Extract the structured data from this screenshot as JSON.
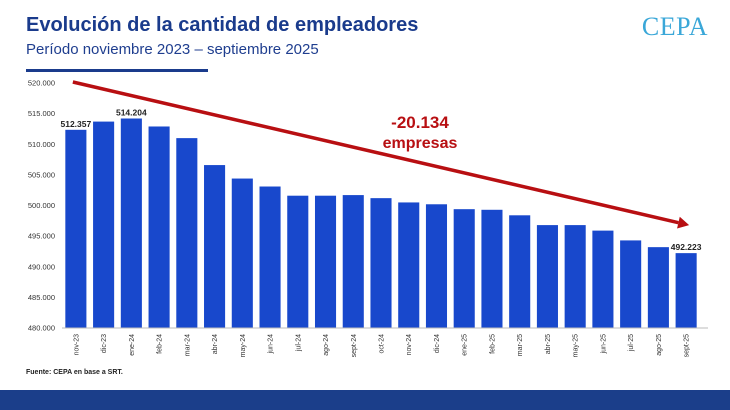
{
  "title": "Evolución de la cantidad de empleadores",
  "subtitle": "Período noviembre 2023 – septiembre 2025",
  "logo": "CEPA",
  "source": "Fuente: CEPA en base a SRT.",
  "colors": {
    "bar": "#1848cc",
    "arrow": "#b80f12",
    "title": "#1a3b8c",
    "footer": "#1b3e8a"
  },
  "chart_data": {
    "type": "bar",
    "title": "Evolución de la cantidad de empleadores",
    "xlabel": "",
    "ylabel": "",
    "categories": [
      "nov-23",
      "dic-23",
      "ene-24",
      "feb-24",
      "mar-24",
      "abr-24",
      "may-24",
      "jun-24",
      "jul-24",
      "ago-24",
      "sept-24",
      "oct-24",
      "nov-24",
      "dic-24",
      "ene-25",
      "feb-25",
      "mar-25",
      "abr-25",
      "may-25",
      "jun-25",
      "jul-25",
      "ago-25",
      "sept-25"
    ],
    "values": [
      512357,
      513700,
      514204,
      512900,
      511000,
      506600,
      504400,
      503100,
      501600,
      501600,
      501700,
      501200,
      500500,
      500200,
      499400,
      499300,
      498400,
      496800,
      496800,
      495900,
      494300,
      493200,
      492223
    ],
    "ylim": [
      480000,
      520000
    ],
    "yticks": [
      480000,
      485000,
      490000,
      495000,
      500000,
      505000,
      510000,
      515000,
      520000
    ],
    "ytick_labels": [
      "480.000",
      "485.000",
      "490.000",
      "495.000",
      "500.000",
      "505.000",
      "510.000",
      "515.000",
      "520.000"
    ],
    "data_labels": [
      {
        "index": 0,
        "text": "512.357"
      },
      {
        "index": 2,
        "text": "514.204"
      },
      {
        "index": 22,
        "text": "492.223"
      }
    ],
    "annotation": {
      "value": "-20.134",
      "text": "empresas"
    },
    "grid": false
  }
}
